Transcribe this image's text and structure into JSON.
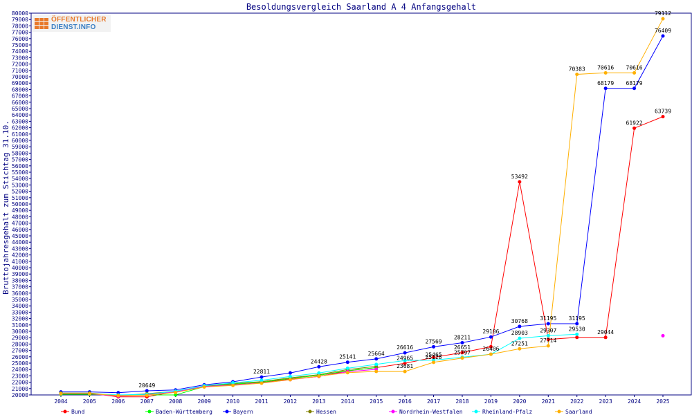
{
  "logo": {
    "line1": "ÖFFENTLICHER",
    "line2": "DIENST.INFO"
  },
  "chart_data": {
    "type": "line",
    "title": "Besoldungsvergleich Saarland A 4 Anfangsgehalt",
    "xlabel": "",
    "ylabel": "Bruttojahresgehalt zum Stichtag 31.10.",
    "ylim": [
      20000,
      80000
    ],
    "ytick_step": 1000,
    "grid": false,
    "legend_position": "bottom",
    "categories": [
      "2004",
      "2005",
      "2006",
      "2007",
      "2008",
      "2009",
      "2010",
      "2011",
      "2012",
      "2013",
      "2014",
      "2015",
      "2016",
      "2017",
      "2018",
      "2019",
      "2020",
      "2021",
      "2022",
      "2023",
      "2024",
      "2025"
    ],
    "series": [
      {
        "name": "Bund",
        "color": "#ff0000",
        "values": [
          20273,
          20273,
          19707,
          19707,
          20530,
          21369,
          21654,
          21980,
          22481,
          22908,
          23794,
          24291,
          24965,
          25902,
          26651,
          27576,
          53492,
          28714,
          29044,
          29044,
          61922,
          63739
        ],
        "labels": [
          null,
          null,
          null,
          null,
          null,
          null,
          null,
          null,
          null,
          null,
          null,
          null,
          "24965",
          null,
          "26651",
          null,
          "53492",
          null,
          null,
          "29044",
          "61922",
          "63739"
        ]
      },
      {
        "name": "Baden-Württemberg",
        "color": "#00ff00",
        "values": [
          20100,
          20100,
          20000,
          20000,
          20000,
          21300,
          21700,
          22000,
          22600,
          23100,
          23800,
          24300,
          null,
          null,
          null,
          null,
          null,
          null,
          null,
          null,
          null,
          null
        ],
        "labels": []
      },
      {
        "name": "Bayern",
        "color": "#0000ff",
        "values": [
          20475,
          20475,
          20351,
          20649,
          20789,
          21592,
          22068,
          22811,
          23459,
          24428,
          25141,
          25664,
          26616,
          27569,
          28211,
          29106,
          30768,
          31195,
          31195,
          68179,
          68179,
          76409
        ],
        "labels": [
          null,
          null,
          null,
          "20649",
          null,
          null,
          null,
          "22811",
          null,
          "24428",
          "25141",
          "25664",
          "26616",
          "27569",
          "28211",
          "29106",
          "30768",
          "31195",
          "31195",
          "68179",
          "68179",
          "76409"
        ]
      },
      {
        "name": "Hessen",
        "color": "#808000",
        "values": [
          20300,
          20300,
          19900,
          20200,
          20600,
          21400,
          21800,
          22100,
          22700,
          23200,
          24000,
          24500,
          null,
          null,
          null,
          null,
          null,
          null,
          null,
          null,
          null,
          null
        ],
        "labels": []
      },
      {
        "name": "Nordrhein-Westfalen",
        "color": "#ff00ff",
        "values": [
          20172,
          20172,
          19830,
          19997,
          20495,
          21310,
          21561,
          21880,
          22392,
          22929,
          23636,
          24022,
          null,
          null,
          null,
          null,
          null,
          null,
          null,
          null,
          null,
          29307
        ],
        "labels": []
      },
      {
        "name": "Rheinland-Pfalz",
        "color": "#00ffff",
        "values": [
          20200,
          20200,
          20000,
          20100,
          20600,
          21450,
          21900,
          22300,
          22900,
          23450,
          24200,
          24800,
          25405,
          25465,
          25927,
          26406,
          28903,
          29307,
          29530,
          null,
          null,
          null
        ],
        "labels": [
          null,
          null,
          null,
          null,
          null,
          null,
          null,
          null,
          null,
          null,
          null,
          null,
          null,
          "25465",
          null,
          "26406",
          "28903",
          "29307",
          "29530",
          null,
          null,
          null
        ]
      },
      {
        "name": "Saarland",
        "color": "#ffb000",
        "values": [
          20200,
          20200,
          19900,
          19950,
          20400,
          21250,
          21500,
          21850,
          22400,
          22950,
          23500,
          23700,
          23681,
          25128,
          25797,
          26406,
          27251,
          27714,
          70383,
          70616,
          70616,
          79112
        ],
        "labels": [
          null,
          null,
          null,
          null,
          null,
          null,
          null,
          null,
          null,
          null,
          null,
          null,
          "23681",
          "25128",
          "25797",
          null,
          "27251",
          "27714",
          "70383",
          "70616",
          "70616",
          "79112"
        ]
      }
    ]
  }
}
